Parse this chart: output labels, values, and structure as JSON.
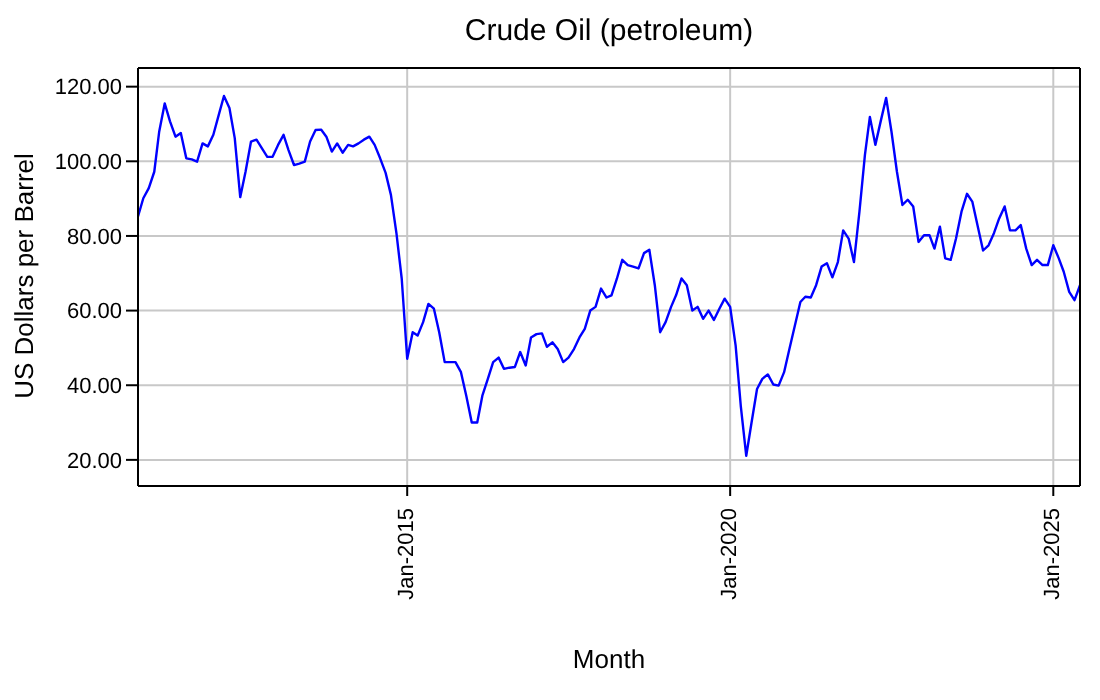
{
  "chart_data": {
    "type": "line",
    "title": "Crude Oil (petroleum)",
    "xlabel": "Month",
    "ylabel": "US Dollars per Barrel",
    "xlim": [
      "2010-11-01",
      "2025-06-01"
    ],
    "ylim": [
      13,
      125
    ],
    "xticks": [
      {
        "value": "2015-01-01",
        "label": "Jan-2015"
      },
      {
        "value": "2020-01-01",
        "label": "Jan-2020"
      },
      {
        "value": "2025-01-01",
        "label": "Jan-2025"
      }
    ],
    "yticks": [
      {
        "value": 20,
        "label": "20.00"
      },
      {
        "value": 40,
        "label": "40.00"
      },
      {
        "value": 60,
        "label": "60.00"
      },
      {
        "value": 80,
        "label": "80.00"
      },
      {
        "value": 100,
        "label": "100.00"
      },
      {
        "value": 120,
        "label": "120.00"
      }
    ],
    "grid": true,
    "marker": "none",
    "line_style": "solid",
    "x": [
      "2010-11",
      "2010-12",
      "2011-01",
      "2011-02",
      "2011-03",
      "2011-04",
      "2011-05",
      "2011-06",
      "2011-07",
      "2011-08",
      "2011-09",
      "2011-10",
      "2011-11",
      "2011-12",
      "2012-01",
      "2012-02",
      "2012-03",
      "2012-04",
      "2012-05",
      "2012-06",
      "2012-07",
      "2012-08",
      "2012-09",
      "2012-10",
      "2012-11",
      "2012-12",
      "2013-01",
      "2013-02",
      "2013-03",
      "2013-04",
      "2013-05",
      "2013-06",
      "2013-07",
      "2013-08",
      "2013-09",
      "2013-10",
      "2013-11",
      "2013-12",
      "2014-01",
      "2014-02",
      "2014-03",
      "2014-04",
      "2014-05",
      "2014-06",
      "2014-07",
      "2014-08",
      "2014-09",
      "2014-10",
      "2014-11",
      "2014-12",
      "2015-01",
      "2015-02",
      "2015-03",
      "2015-04",
      "2015-05",
      "2015-06",
      "2015-07",
      "2015-08",
      "2015-09",
      "2015-10",
      "2015-11",
      "2015-12",
      "2016-01",
      "2016-02",
      "2016-03",
      "2016-04",
      "2016-05",
      "2016-06",
      "2016-07",
      "2016-08",
      "2016-09",
      "2016-10",
      "2016-11",
      "2016-12",
      "2017-01",
      "2017-02",
      "2017-03",
      "2017-04",
      "2017-05",
      "2017-06",
      "2017-07",
      "2017-08",
      "2017-09",
      "2017-10",
      "2017-11",
      "2017-12",
      "2018-01",
      "2018-02",
      "2018-03",
      "2018-04",
      "2018-05",
      "2018-06",
      "2018-07",
      "2018-08",
      "2018-09",
      "2018-10",
      "2018-11",
      "2018-12",
      "2019-01",
      "2019-02",
      "2019-03",
      "2019-04",
      "2019-05",
      "2019-06",
      "2019-07",
      "2019-08",
      "2019-09",
      "2019-10",
      "2019-11",
      "2019-12",
      "2020-01",
      "2020-02",
      "2020-03",
      "2020-04",
      "2020-05",
      "2020-06",
      "2020-07",
      "2020-08",
      "2020-09",
      "2020-10",
      "2020-11",
      "2020-12",
      "2021-01",
      "2021-02",
      "2021-03",
      "2021-04",
      "2021-05",
      "2021-06",
      "2021-07",
      "2021-08",
      "2021-09",
      "2021-10",
      "2021-11",
      "2021-12",
      "2022-01",
      "2022-02",
      "2022-03",
      "2022-04",
      "2022-05",
      "2022-06",
      "2022-07",
      "2022-08",
      "2022-09",
      "2022-10",
      "2022-11",
      "2022-12",
      "2023-01",
      "2023-02",
      "2023-03",
      "2023-04",
      "2023-05",
      "2023-06",
      "2023-07",
      "2023-08",
      "2023-09",
      "2023-10",
      "2023-11",
      "2023-12",
      "2024-01",
      "2024-02",
      "2024-03",
      "2024-04",
      "2024-05",
      "2024-06",
      "2024-07",
      "2024-08",
      "2024-09",
      "2024-10",
      "2024-11",
      "2024-12",
      "2025-01",
      "2025-02",
      "2025-03",
      "2025-04",
      "2025-05",
      "2025-06"
    ],
    "series": [
      {
        "color": "#0000ff",
        "values": [
          85.2,
          90.1,
          92.8,
          97.2,
          108,
          115.5,
          110.7,
          106.6,
          107.6,
          100.8,
          100.5,
          99.9,
          104.8,
          104,
          107.1,
          112.5,
          117.5,
          114.3,
          106.2,
          90.4,
          97.2,
          105.3,
          105.8,
          103.5,
          101.2,
          101.2,
          104.4,
          107.1,
          103,
          99,
          99.4,
          99.9,
          105.3,
          108.4,
          108.5,
          106.6,
          102.6,
          104.8,
          102.3,
          104.4,
          104,
          104.8,
          105.8,
          106.6,
          104.4,
          100.8,
          96.9,
          91,
          80.8,
          68.6,
          47.1,
          54.2,
          53.3,
          56.9,
          61.8,
          60.5,
          54.2,
          46.2,
          46.2,
          46.2,
          43.5,
          37.2,
          30,
          30,
          37.2,
          41.7,
          46.2,
          47.4,
          44.4,
          44.7,
          44.9,
          48.9,
          45.3,
          52.8,
          53.7,
          53.9,
          50.3,
          51.5,
          49.7,
          46.2,
          47.4,
          49.7,
          52.8,
          55.1,
          60,
          61,
          65.9,
          63.5,
          64.1,
          68.6,
          73.6,
          72.2,
          71.8,
          71.3,
          75.4,
          76.3,
          66.8,
          54.2,
          56.9,
          61,
          64.1,
          68.6,
          66.8,
          60,
          61,
          57.8,
          60,
          57.5,
          60.5,
          63.2,
          61,
          50.6,
          34.5,
          21.1,
          30,
          39,
          41.7,
          42.9,
          40.2,
          39.9,
          43.5,
          49.7,
          56,
          62.3,
          63.7,
          63.5,
          66.8,
          71.8,
          72.7,
          68.9,
          73,
          81.5,
          79.3,
          73,
          86.5,
          101.7,
          111.9,
          104.4,
          110.7,
          117,
          108,
          97.2,
          88.3,
          89.7,
          87.9,
          78.4,
          80.2,
          80.2,
          76.6,
          82.5,
          74,
          73.6,
          79.3,
          86.5,
          91.3,
          89.2,
          82.5,
          76.1,
          77.5,
          80.8,
          84.7,
          87.9,
          81.5,
          81.5,
          82.9,
          76.6,
          72.2,
          73.6,
          72.2,
          72.2,
          77.5,
          74,
          70.4,
          65,
          62.8,
          66.8
        ]
      }
    ]
  }
}
